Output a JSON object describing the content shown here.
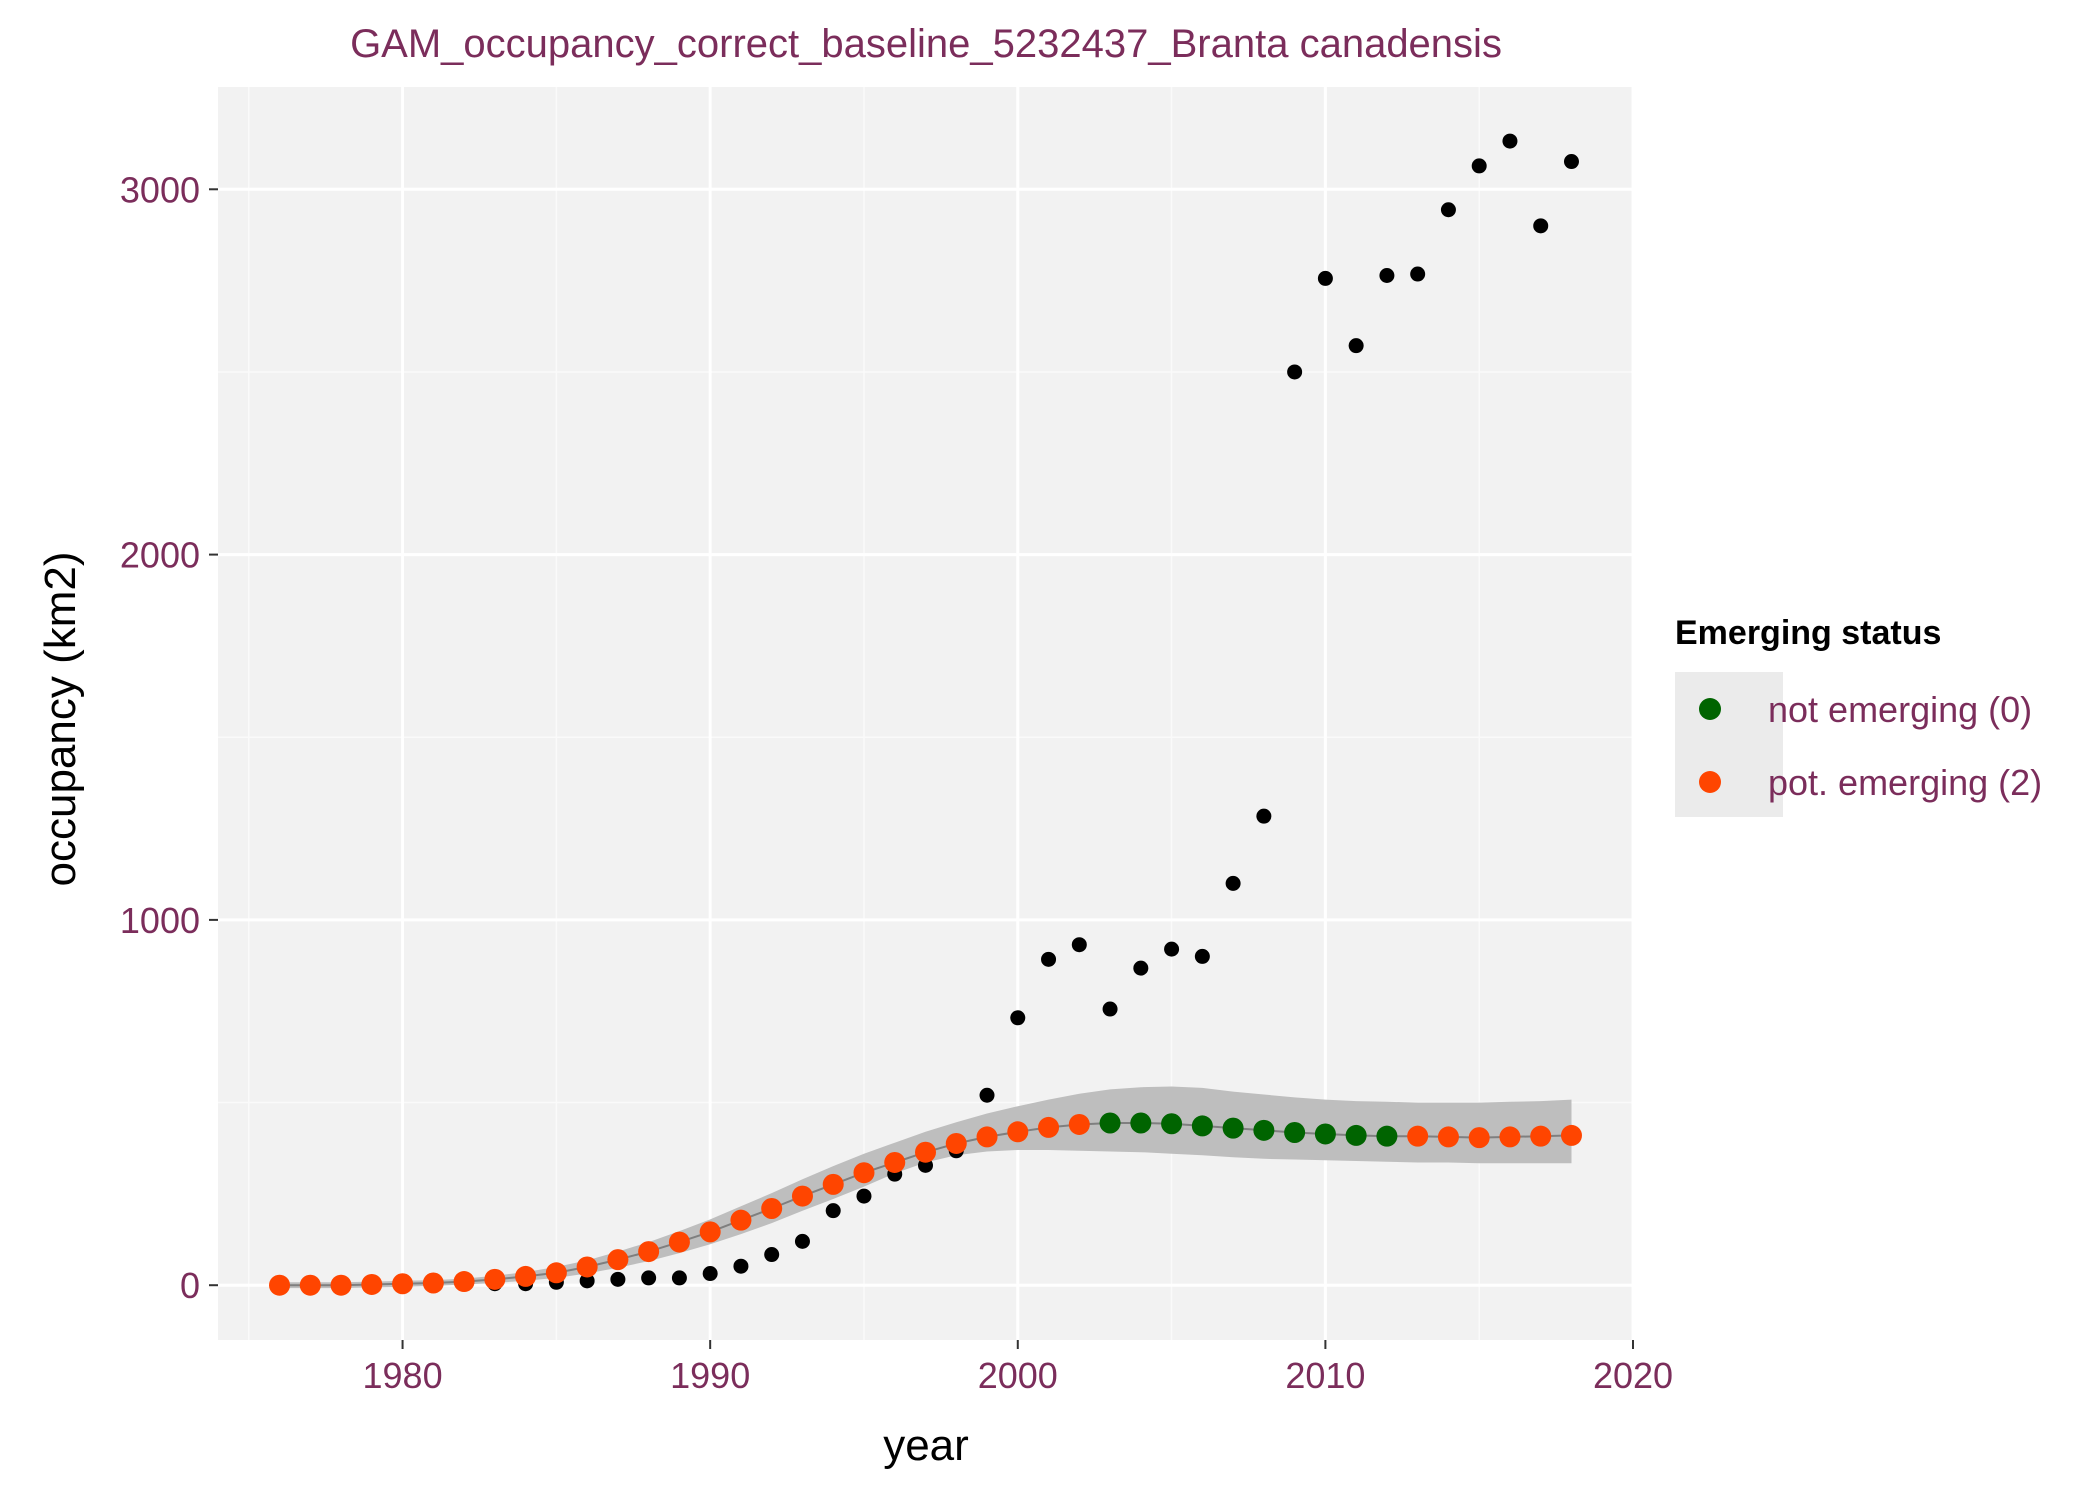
{
  "colors": {
    "text_accent": "#7B2D5B",
    "panel_bg": "#F2F2F2",
    "grid_major": "#FFFFFF",
    "grid_minor": "#FAFAFA",
    "observed_points": "#000000",
    "ribbon": "#BEBEBE",
    "fit_line": "#7F7F7F",
    "not_emerging": "#006400",
    "pot_emerging": "#FF4500",
    "legend_key_bg": "#EBEBEB"
  },
  "chart_data": {
    "type": "scatter",
    "title": "GAM_occupancy_correct_baseline_5232437_Branta canadensis",
    "xlabel": "year",
    "ylabel": "occupancy (km2)",
    "xlim": [
      1974,
      2020
    ],
    "ylim": [
      -150,
      3280
    ],
    "x_ticks": [
      1980,
      1990,
      2000,
      2010,
      2020
    ],
    "x_tick_labels": [
      "1980",
      "1990",
      "2000",
      "2010",
      "2020"
    ],
    "y_ticks": [
      0,
      1000,
      2000,
      3000
    ],
    "y_tick_labels": [
      "0",
      "1000",
      "2000",
      "3000"
    ],
    "grid": true,
    "legend": {
      "title": "Emerging status",
      "position": "right",
      "entries": [
        "not emerging (0)",
        "pot. emerging (2)"
      ]
    },
    "observed": {
      "x": [
        1982,
        1983,
        1984,
        1985,
        1986,
        1987,
        1988,
        1989,
        1990,
        1991,
        1992,
        1993,
        1994,
        1995,
        1996,
        1997,
        1998,
        1999,
        2000,
        2001,
        2002,
        2003,
        2004,
        2005,
        2006,
        2007,
        2008,
        2009,
        2010,
        2011,
        2012,
        2013,
        2014,
        2015,
        2016,
        2017,
        2018
      ],
      "y": [
        4,
        4,
        4,
        8,
        12,
        16,
        20,
        20,
        32,
        52,
        84,
        120,
        204,
        244,
        304,
        328,
        368,
        520,
        732,
        892,
        932,
        756,
        868,
        920,
        900,
        1100,
        1284,
        2500,
        2756,
        2572,
        2764,
        2768,
        2944,
        3064,
        3132,
        2900,
        3076
      ]
    },
    "fitted": {
      "x": [
        1976,
        1977,
        1978,
        1979,
        1980,
        1981,
        1982,
        1983,
        1984,
        1985,
        1986,
        1987,
        1988,
        1989,
        1990,
        1991,
        1992,
        1993,
        1994,
        1995,
        1996,
        1997,
        1998,
        1999,
        2000,
        2001,
        2002,
        2003,
        2004,
        2005,
        2006,
        2007,
        2008,
        2009,
        2010,
        2011,
        2012,
        2013,
        2014,
        2015,
        2016,
        2017,
        2018
      ],
      "y": [
        0,
        0,
        0,
        2,
        4,
        6,
        10,
        16,
        24,
        34,
        50,
        70,
        92,
        118,
        146,
        178,
        210,
        244,
        276,
        308,
        336,
        364,
        388,
        406,
        420,
        432,
        440,
        444,
        444,
        442,
        436,
        430,
        424,
        418,
        414,
        410,
        408,
        408,
        406,
        404,
        406,
        408,
        410
      ],
      "ci_lower": [
        -8,
        -8,
        -8,
        -6,
        -4,
        -2,
        2,
        6,
        12,
        20,
        32,
        48,
        66,
        88,
        112,
        140,
        170,
        204,
        236,
        270,
        306,
        336,
        356,
        366,
        370,
        370,
        368,
        366,
        364,
        360,
        356,
        350,
        346,
        344,
        342,
        340,
        338,
        336,
        336,
        334,
        334,
        334,
        334
      ],
      "ci_upper": [
        8,
        8,
        8,
        10,
        12,
        14,
        18,
        26,
        36,
        50,
        68,
        92,
        118,
        148,
        180,
        216,
        252,
        290,
        326,
        360,
        390,
        420,
        446,
        470,
        490,
        508,
        524,
        536,
        542,
        544,
        540,
        530,
        522,
        514,
        508,
        504,
        502,
        500,
        500,
        500,
        502,
        504,
        508
      ],
      "status": [
        "pot. emerging (2)",
        "pot. emerging (2)",
        "pot. emerging (2)",
        "pot. emerging (2)",
        "pot. emerging (2)",
        "pot. emerging (2)",
        "pot. emerging (2)",
        "pot. emerging (2)",
        "pot. emerging (2)",
        "pot. emerging (2)",
        "pot. emerging (2)",
        "pot. emerging (2)",
        "pot. emerging (2)",
        "pot. emerging (2)",
        "pot. emerging (2)",
        "pot. emerging (2)",
        "pot. emerging (2)",
        "pot. emerging (2)",
        "pot. emerging (2)",
        "pot. emerging (2)",
        "pot. emerging (2)",
        "pot. emerging (2)",
        "pot. emerging (2)",
        "pot. emerging (2)",
        "pot. emerging (2)",
        "pot. emerging (2)",
        "pot. emerging (2)",
        "not emerging (0)",
        "not emerging (0)",
        "not emerging (0)",
        "not emerging (0)",
        "not emerging (0)",
        "not emerging (0)",
        "not emerging (0)",
        "not emerging (0)",
        "not emerging (0)",
        "not emerging (0)",
        "pot. emerging (2)",
        "pot. emerging (2)",
        "pot. emerging (2)",
        "pot. emerging (2)",
        "pot. emerging (2)",
        "pot. emerging (2)"
      ]
    }
  }
}
